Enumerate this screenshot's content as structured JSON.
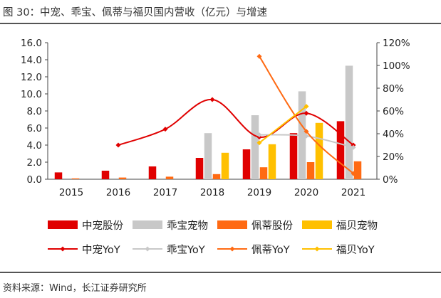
{
  "title": "图 30：中宠、乖宝、佩蒂与福贝国内营收（亿元）与增速",
  "source": "资料来源：Wind，长江证券研究所",
  "chart_data": {
    "type": "bar",
    "categories": [
      "2015",
      "2016",
      "2017",
      "2018",
      "2019",
      "2020",
      "2021"
    ],
    "y_left": {
      "min": 0,
      "max": 16,
      "ticks": [
        "0.0",
        "2.0",
        "4.0",
        "6.0",
        "8.0",
        "10.0",
        "12.0",
        "14.0",
        "16.0"
      ]
    },
    "y_right": {
      "min": 0,
      "max": 120,
      "ticks": [
        "0%",
        "20%",
        "40%",
        "60%",
        "80%",
        "100%",
        "120%"
      ]
    },
    "bar_series": [
      {
        "name": "中宠股份",
        "color": "#e00000",
        "values": [
          0.8,
          1.0,
          1.5,
          2.5,
          3.5,
          5.4,
          6.8
        ]
      },
      {
        "name": "乖宝宠物",
        "color": "#c8c8c8",
        "values": [
          null,
          null,
          null,
          5.4,
          7.5,
          10.3,
          13.3
        ]
      },
      {
        "name": "佩蒂股份",
        "color": "#ff6a13",
        "values": [
          0.1,
          0.2,
          0.3,
          0.6,
          1.4,
          2.0,
          2.1
        ]
      },
      {
        "name": "福贝宠物",
        "color": "#ffc000",
        "values": [
          null,
          null,
          null,
          3.1,
          4.1,
          6.6,
          null
        ]
      }
    ],
    "line_series": [
      {
        "name": "中宠YoY",
        "color": "#e00000",
        "values": [
          null,
          30,
          44,
          70,
          37,
          58,
          30
        ]
      },
      {
        "name": "乖宝YoY",
        "color": "#c8c8c8",
        "values": [
          null,
          null,
          null,
          null,
          39,
          38,
          28
        ]
      },
      {
        "name": "佩蒂YoY",
        "color": "#ff6a13",
        "values": [
          null,
          null,
          null,
          null,
          108,
          42,
          5
        ]
      },
      {
        "name": "福贝YoY",
        "color": "#ffc000",
        "values": [
          null,
          null,
          null,
          null,
          32,
          64,
          null
        ]
      }
    ],
    "legend_position": "bottom"
  }
}
